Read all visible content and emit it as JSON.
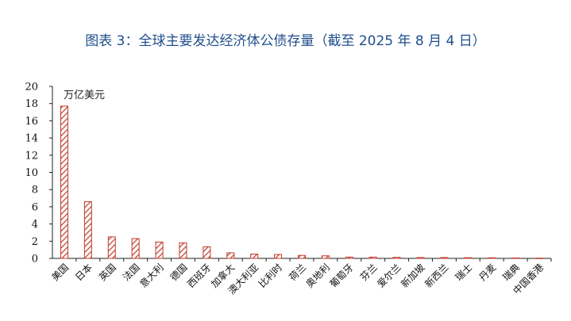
{
  "chart_data": {
    "type": "bar",
    "title": "图表 3：全球主要发达经济体公债存量（截至 2025 年 8 月 4 日）",
    "unit_label": "万亿美元",
    "xlabel": "",
    "ylabel": "",
    "ylim": [
      0,
      20
    ],
    "yticks": [
      0,
      2,
      4,
      6,
      8,
      10,
      12,
      14,
      16,
      18,
      20
    ],
    "grid": false,
    "legend": "none",
    "bar_color": "#c0392b",
    "bar_fill": "hatched",
    "categories": [
      "美国",
      "日本",
      "英国",
      "法国",
      "意大利",
      "德国",
      "西班牙",
      "加拿大",
      "澳大利亚",
      "比利时",
      "荷兰",
      "奥地利",
      "葡萄牙",
      "芬兰",
      "爱尔兰",
      "新加坡",
      "新西兰",
      "瑞士",
      "丹麦",
      "瑞典",
      "中国香港"
    ],
    "values": [
      17.7,
      6.6,
      2.5,
      2.3,
      1.9,
      1.8,
      1.35,
      0.65,
      0.5,
      0.45,
      0.35,
      0.3,
      0.15,
      0.15,
      0.12,
      0.1,
      0.1,
      0.08,
      0.07,
      0.05,
      0.03
    ]
  }
}
